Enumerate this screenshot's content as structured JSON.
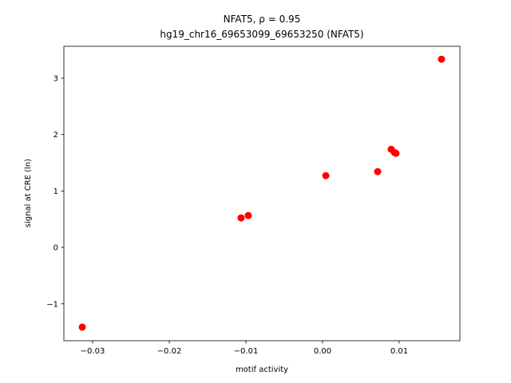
{
  "chart_data": {
    "type": "scatter",
    "title": "NFAT5, ρ = 0.95",
    "subtitle": "hg19_chr16_69653099_69653250 (NFAT5)",
    "x_label": "motif activity",
    "y_label": "signal at CRE (ln)",
    "color": "#ff0000",
    "x": [
      -0.03135,
      -0.01063,
      -0.00969,
      0.00042,
      0.00719,
      0.00896,
      0.00938,
      0.00958,
      0.01552
    ],
    "values": [
      -1.413,
      0.523,
      0.565,
      1.272,
      1.343,
      1.739,
      1.682,
      1.668,
      3.336
    ],
    "xlim": [
      -0.03375,
      0.01792
    ],
    "ylim": [
      -1.654,
      3.565
    ],
    "xticks": [
      {
        "value": -0.03,
        "label": "−0.03"
      },
      {
        "value": -0.02,
        "label": "−0.02"
      },
      {
        "value": -0.01,
        "label": "−0.01"
      },
      {
        "value": 0,
        "label": "0.00"
      },
      0.01
    ],
    "yticks": [
      {
        "value": -1,
        "label": "−1"
      },
      0,
      1,
      2,
      3
    ]
  }
}
